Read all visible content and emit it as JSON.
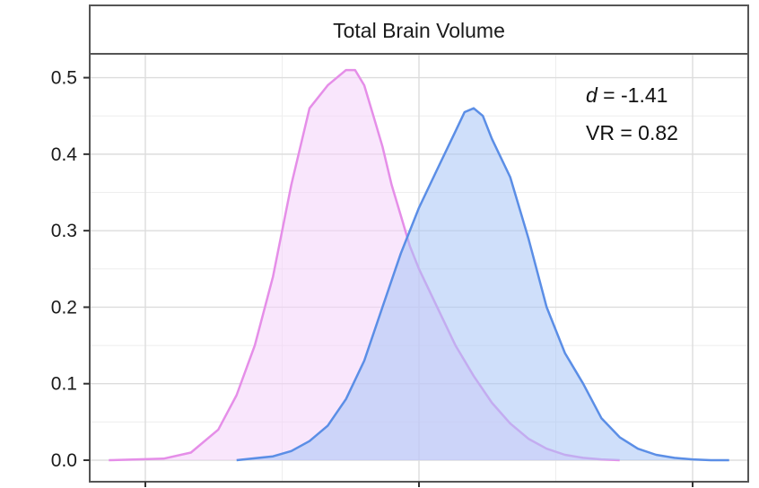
{
  "chart_data": {
    "type": "area",
    "title": "Total Brain Volume",
    "xlabel": "",
    "ylabel": "",
    "ylim": [
      0,
      0.53
    ],
    "xlim": [
      -3.6,
      3.6
    ],
    "yticks": [
      0.0,
      0.1,
      0.2,
      0.3,
      0.4,
      0.5
    ],
    "ytick_labels": [
      "0.0",
      "0.1",
      "0.2",
      "0.3",
      "0.4",
      "0.5"
    ],
    "xticks": [
      -3,
      0,
      3
    ],
    "xtick_labels": [
      "",
      "",
      ""
    ],
    "grid": true,
    "legend": "none",
    "annotations": {
      "d_symbol": "d",
      "d_value": " = -1.41",
      "vr": "VR = 0.82"
    },
    "series": [
      {
        "color": "#e58ee8",
        "fill": "#f4d2f9",
        "x": [
          -3.4,
          -2.8,
          -2.5,
          -2.2,
          -2.0,
          -1.8,
          -1.6,
          -1.4,
          -1.2,
          -1.0,
          -0.8,
          -0.7,
          -0.6,
          -0.5,
          -0.4,
          -0.3,
          -0.2,
          -0.1,
          0.0,
          0.2,
          0.4,
          0.6,
          0.8,
          1.0,
          1.2,
          1.4,
          1.6,
          1.8,
          2.0,
          2.2
        ],
        "y": [
          0.0,
          0.002,
          0.01,
          0.04,
          0.085,
          0.15,
          0.24,
          0.36,
          0.46,
          0.49,
          0.51,
          0.51,
          0.49,
          0.45,
          0.41,
          0.36,
          0.32,
          0.28,
          0.25,
          0.2,
          0.15,
          0.11,
          0.075,
          0.048,
          0.028,
          0.015,
          0.007,
          0.003,
          0.001,
          0.0
        ]
      },
      {
        "color": "#5b8ee6",
        "fill": "#a7c4f5",
        "x": [
          -2.0,
          -1.6,
          -1.4,
          -1.2,
          -1.0,
          -0.8,
          -0.6,
          -0.4,
          -0.2,
          0.0,
          0.2,
          0.4,
          0.5,
          0.6,
          0.7,
          0.8,
          1.0,
          1.2,
          1.4,
          1.6,
          1.8,
          2.0,
          2.2,
          2.4,
          2.6,
          2.8,
          3.0,
          3.2,
          3.4
        ],
        "y": [
          0.0,
          0.005,
          0.012,
          0.025,
          0.045,
          0.08,
          0.13,
          0.2,
          0.27,
          0.33,
          0.38,
          0.43,
          0.455,
          0.46,
          0.45,
          0.42,
          0.37,
          0.29,
          0.2,
          0.14,
          0.1,
          0.055,
          0.03,
          0.015,
          0.007,
          0.003,
          0.001,
          0.0,
          0.0
        ]
      }
    ]
  }
}
